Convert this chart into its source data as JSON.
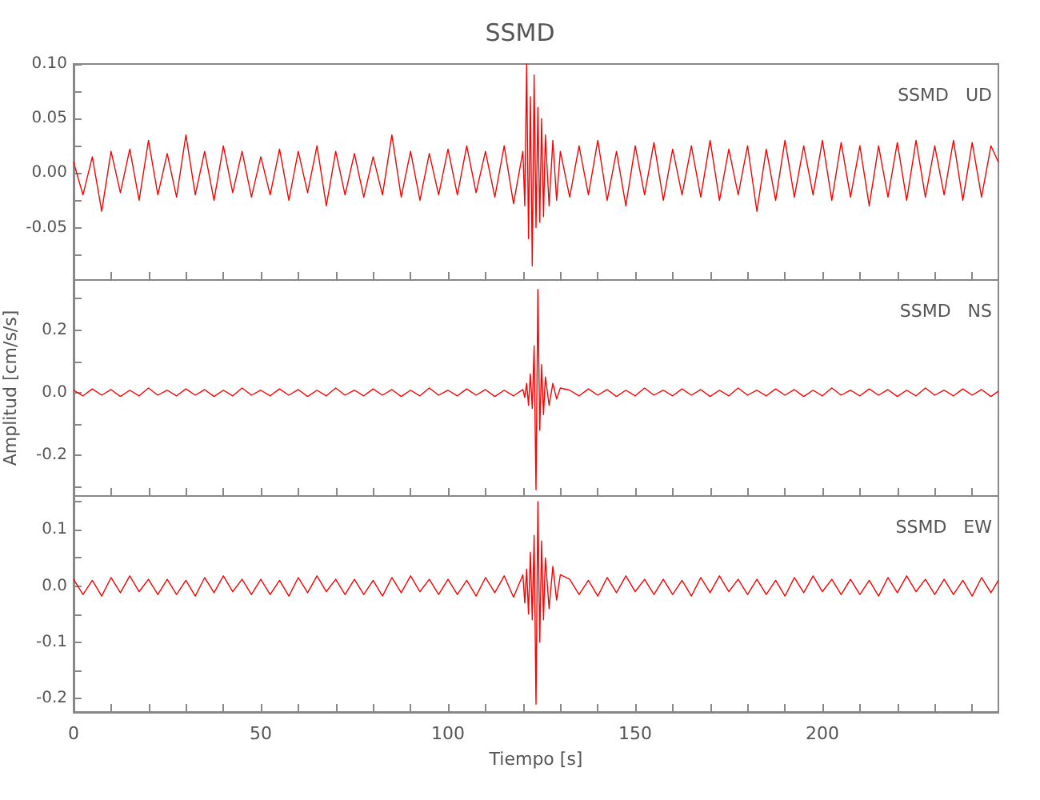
{
  "chart_data": [
    {
      "type": "line",
      "title": "SSMD",
      "annotations": [
        "SSMD   UD"
      ],
      "tick_labels": "y",
      "grid": false,
      "marker": "none",
      "xlim": [
        0,
        247
      ],
      "xticks": [
        0,
        {
          "value": 10,
          "label": null
        },
        {
          "value": 20,
          "label": null
        },
        {
          "value": 30,
          "label": null
        },
        {
          "value": 40,
          "label": null
        },
        50,
        {
          "value": 60,
          "label": null
        },
        {
          "value": 70,
          "label": null
        },
        {
          "value": 80,
          "label": null
        },
        {
          "value": 90,
          "label": null
        },
        100,
        {
          "value": 110,
          "label": null
        },
        {
          "value": 120,
          "label": null
        },
        {
          "value": 130,
          "label": null
        },
        {
          "value": 140,
          "label": null
        },
        150,
        {
          "value": 160,
          "label": null
        },
        {
          "value": 170,
          "label": null
        },
        {
          "value": 180,
          "label": null
        },
        {
          "value": 190,
          "label": null
        },
        200,
        {
          "value": 210,
          "label": null
        },
        {
          "value": 220,
          "label": null
        },
        {
          "value": 230,
          "label": null
        },
        {
          "value": 240,
          "label": null
        }
      ],
      "ylim": [
        -0.098,
        0.1
      ],
      "yticks": [
        {
          "value": -0.075,
          "label": null
        },
        {
          "value": -0.05,
          "label": "-0.05"
        },
        {
          "value": -0.025,
          "label": null
        },
        {
          "value": 0,
          "label": "0.00"
        },
        {
          "value": 0.025,
          "label": null
        },
        {
          "value": 0.05,
          "label": "0.05"
        },
        {
          "value": 0.075,
          "label": null
        },
        {
          "value": 0.1,
          "label": "0.10"
        }
      ],
      "x": [
        0,
        2.5,
        5,
        7.5,
        10,
        12.5,
        15,
        17.5,
        20,
        22.5,
        25,
        27.5,
        30,
        32.5,
        35,
        37.5,
        40,
        42.5,
        45,
        47.5,
        50,
        52.5,
        55,
        57.5,
        60,
        62.5,
        65,
        67.5,
        70,
        72.5,
        75,
        77.5,
        80,
        82.5,
        85,
        87.5,
        90,
        92.5,
        95,
        97.5,
        100,
        102.5,
        105,
        107.5,
        110,
        112.5,
        115,
        117.5,
        120,
        120.5,
        121,
        121.5,
        122,
        122.5,
        123,
        123.5,
        124,
        124.5,
        125,
        125.5,
        126,
        127,
        128,
        129,
        130,
        132.5,
        135,
        137.5,
        140,
        142.5,
        145,
        147.5,
        150,
        152.5,
        155,
        157.5,
        160,
        162.5,
        165,
        167.5,
        170,
        172.5,
        175,
        177.5,
        180,
        182.5,
        185,
        187.5,
        190,
        192.5,
        195,
        197.5,
        200,
        202.5,
        205,
        207.5,
        210,
        212.5,
        215,
        217.5,
        220,
        222.5,
        225,
        227.5,
        230,
        232.5,
        235,
        237.5,
        240,
        242.5,
        245,
        247
      ],
      "series": [
        {
          "color": "#ff0000",
          "values": [
            0.01,
            -0.02,
            0.015,
            -0.035,
            0.02,
            -0.018,
            0.022,
            -0.025,
            0.03,
            -0.02,
            0.018,
            -0.022,
            0.035,
            -0.02,
            0.02,
            -0.025,
            0.025,
            -0.018,
            0.02,
            -0.022,
            0.015,
            -0.02,
            0.022,
            -0.025,
            0.02,
            -0.018,
            0.025,
            -0.03,
            0.02,
            -0.02,
            0.018,
            -0.022,
            0.015,
            -0.02,
            0.035,
            -0.022,
            0.02,
            -0.025,
            0.018,
            -0.02,
            0.022,
            -0.02,
            0.025,
            -0.018,
            0.02,
            -0.022,
            0.025,
            -0.028,
            0.02,
            -0.03,
            0.1,
            -0.06,
            0.07,
            -0.085,
            0.09,
            -0.05,
            0.06,
            -0.045,
            0.05,
            -0.04,
            0.035,
            -0.03,
            0.03,
            -0.025,
            0.02,
            -0.022,
            0.025,
            -0.02,
            0.03,
            -0.025,
            0.02,
            -0.03,
            0.025,
            -0.02,
            0.028,
            -0.025,
            0.022,
            -0.02,
            0.025,
            -0.022,
            0.03,
            -0.025,
            0.022,
            -0.02,
            0.025,
            -0.035,
            0.022,
            -0.025,
            0.03,
            -0.022,
            0.025,
            -0.02,
            0.03,
            -0.025,
            0.028,
            -0.022,
            0.025,
            -0.03,
            0.025,
            -0.022,
            0.028,
            -0.025,
            0.03,
            -0.022,
            0.025,
            -0.02,
            0.03,
            -0.025,
            0.028,
            -0.022,
            0.025,
            0.01
          ]
        }
      ]
    },
    {
      "type": "line",
      "ylabel": "Amplitud [cm/s/s]",
      "annotations": [
        "SSMD   NS"
      ],
      "tick_labels": "y",
      "grid": false,
      "marker": "none",
      "xlim": [
        0,
        247
      ],
      "xticks": [
        0,
        {
          "value": 10,
          "label": null
        },
        {
          "value": 20,
          "label": null
        },
        {
          "value": 30,
          "label": null
        },
        {
          "value": 40,
          "label": null
        },
        50,
        {
          "value": 60,
          "label": null
        },
        {
          "value": 70,
          "label": null
        },
        {
          "value": 80,
          "label": null
        },
        {
          "value": 90,
          "label": null
        },
        100,
        {
          "value": 110,
          "label": null
        },
        {
          "value": 120,
          "label": null
        },
        {
          "value": 130,
          "label": null
        },
        {
          "value": 140,
          "label": null
        },
        150,
        {
          "value": 160,
          "label": null
        },
        {
          "value": 170,
          "label": null
        },
        {
          "value": 180,
          "label": null
        },
        {
          "value": 190,
          "label": null
        },
        200,
        {
          "value": 210,
          "label": null
        },
        {
          "value": 220,
          "label": null
        },
        {
          "value": 230,
          "label": null
        },
        {
          "value": 240,
          "label": null
        }
      ],
      "ylim": [
        -0.33,
        0.36
      ],
      "yticks": [
        {
          "value": -0.3,
          "label": null
        },
        -0.2,
        {
          "value": -0.1,
          "label": null
        },
        {
          "value": 0,
          "label": "0.0"
        },
        {
          "value": 0.1,
          "label": null
        },
        0.2,
        {
          "value": 0.3,
          "label": null
        }
      ],
      "x": [
        0,
        2.5,
        5,
        7.5,
        10,
        12.5,
        15,
        17.5,
        20,
        22.5,
        25,
        27.5,
        30,
        32.5,
        35,
        37.5,
        40,
        42.5,
        45,
        47.5,
        50,
        52.5,
        55,
        57.5,
        60,
        62.5,
        65,
        67.5,
        70,
        72.5,
        75,
        77.5,
        80,
        82.5,
        85,
        87.5,
        90,
        92.5,
        95,
        97.5,
        100,
        102.5,
        105,
        107.5,
        110,
        112.5,
        115,
        117.5,
        120,
        120.5,
        121,
        121.5,
        122,
        122.5,
        123,
        123.5,
        124,
        124.5,
        125,
        125.5,
        126,
        127,
        128,
        129,
        130,
        132.5,
        135,
        137.5,
        140,
        142.5,
        145,
        147.5,
        150,
        152.5,
        155,
        157.5,
        160,
        162.5,
        165,
        167.5,
        170,
        172.5,
        175,
        177.5,
        180,
        182.5,
        185,
        187.5,
        190,
        192.5,
        195,
        197.5,
        200,
        202.5,
        205,
        207.5,
        210,
        212.5,
        215,
        217.5,
        220,
        222.5,
        225,
        227.5,
        230,
        232.5,
        235,
        237.5,
        240,
        242.5,
        245,
        247
      ],
      "series": [
        {
          "color": "#ff0000",
          "values": [
            0.008,
            -0.01,
            0.012,
            -0.008,
            0.01,
            -0.012,
            0.008,
            -0.01,
            0.015,
            -0.008,
            0.008,
            -0.01,
            0.012,
            -0.008,
            0.01,
            -0.012,
            0.008,
            -0.01,
            0.015,
            -0.008,
            0.008,
            -0.01,
            0.012,
            -0.008,
            0.01,
            -0.012,
            0.008,
            -0.01,
            0.015,
            -0.008,
            0.008,
            -0.01,
            0.012,
            -0.008,
            0.01,
            -0.012,
            0.008,
            -0.01,
            0.015,
            -0.008,
            0.008,
            -0.01,
            0.012,
            -0.008,
            0.01,
            -0.012,
            0.008,
            -0.01,
            0.01,
            -0.015,
            0.03,
            -0.04,
            0.06,
            -0.05,
            0.15,
            -0.31,
            0.33,
            -0.12,
            0.09,
            -0.07,
            0.05,
            -0.04,
            0.03,
            -0.02,
            0.015,
            0.008,
            -0.01,
            0.012,
            -0.008,
            0.01,
            -0.012,
            0.008,
            -0.01,
            0.015,
            -0.008,
            0.008,
            -0.01,
            0.012,
            -0.008,
            0.01,
            -0.012,
            0.008,
            -0.01,
            0.015,
            -0.008,
            0.008,
            -0.01,
            0.012,
            -0.008,
            0.01,
            -0.012,
            0.008,
            -0.01,
            0.015,
            -0.008,
            0.008,
            -0.01,
            0.012,
            -0.008,
            0.01,
            -0.012,
            0.008,
            -0.01,
            0.015,
            -0.008,
            0.008,
            -0.01,
            0.012,
            -0.008,
            0.01,
            -0.012,
            0.005
          ]
        }
      ]
    },
    {
      "type": "line",
      "xlabel": "Tiempo [s]",
      "annotations": [
        "SSMD   EW"
      ],
      "grid": false,
      "marker": "none",
      "xlim": [
        0,
        247
      ],
      "xticks": [
        0,
        {
          "value": 10,
          "label": null
        },
        {
          "value": 20,
          "label": null
        },
        {
          "value": 30,
          "label": null
        },
        {
          "value": 40,
          "label": null
        },
        50,
        {
          "value": 60,
          "label": null
        },
        {
          "value": 70,
          "label": null
        },
        {
          "value": 80,
          "label": null
        },
        {
          "value": 90,
          "label": null
        },
        100,
        {
          "value": 110,
          "label": null
        },
        {
          "value": 120,
          "label": null
        },
        {
          "value": 130,
          "label": null
        },
        {
          "value": 140,
          "label": null
        },
        150,
        {
          "value": 160,
          "label": null
        },
        {
          "value": 170,
          "label": null
        },
        {
          "value": 180,
          "label": null
        },
        {
          "value": 190,
          "label": null
        },
        200,
        {
          "value": 210,
          "label": null
        },
        {
          "value": 220,
          "label": null
        },
        {
          "value": 230,
          "label": null
        },
        {
          "value": 240,
          "label": null
        }
      ],
      "ylim": [
        -0.224,
        0.16
      ],
      "yticks": [
        -0.2,
        {
          "value": -0.15,
          "label": null
        },
        -0.1,
        {
          "value": -0.05,
          "label": null
        },
        {
          "value": 0,
          "label": "0.0"
        },
        {
          "value": 0.05,
          "label": null
        },
        0.1,
        {
          "value": 0.15,
          "label": null
        }
      ],
      "x": [
        0,
        2.5,
        5,
        7.5,
        10,
        12.5,
        15,
        17.5,
        20,
        22.5,
        25,
        27.5,
        30,
        32.5,
        35,
        37.5,
        40,
        42.5,
        45,
        47.5,
        50,
        52.5,
        55,
        57.5,
        60,
        62.5,
        65,
        67.5,
        70,
        72.5,
        75,
        77.5,
        80,
        82.5,
        85,
        87.5,
        90,
        92.5,
        95,
        97.5,
        100,
        102.5,
        105,
        107.5,
        110,
        112.5,
        115,
        117.5,
        120,
        120.5,
        121,
        121.5,
        122,
        122.5,
        123,
        123.5,
        124,
        124.5,
        125,
        125.5,
        126,
        127,
        128,
        129,
        130,
        132.5,
        135,
        137.5,
        140,
        142.5,
        145,
        147.5,
        150,
        152.5,
        155,
        157.5,
        160,
        162.5,
        165,
        167.5,
        170,
        172.5,
        175,
        177.5,
        180,
        182.5,
        185,
        187.5,
        190,
        192.5,
        195,
        197.5,
        200,
        202.5,
        205,
        207.5,
        210,
        212.5,
        215,
        217.5,
        220,
        222.5,
        225,
        227.5,
        230,
        232.5,
        235,
        237.5,
        240,
        242.5,
        245,
        247
      ],
      "series": [
        {
          "color": "#ff0000",
          "values": [
            0.012,
            -0.015,
            0.01,
            -0.018,
            0.015,
            -0.012,
            0.018,
            -0.01,
            0.012,
            -0.015,
            0.012,
            -0.015,
            0.01,
            -0.018,
            0.015,
            -0.012,
            0.018,
            -0.01,
            0.012,
            -0.015,
            0.012,
            -0.015,
            0.01,
            -0.018,
            0.015,
            -0.012,
            0.018,
            -0.01,
            0.012,
            -0.015,
            0.012,
            -0.015,
            0.01,
            -0.018,
            0.015,
            -0.012,
            0.018,
            -0.01,
            0.012,
            -0.015,
            0.012,
            -0.015,
            0.01,
            -0.018,
            0.015,
            -0.012,
            0.018,
            -0.02,
            0.02,
            -0.03,
            0.03,
            -0.05,
            0.06,
            -0.06,
            0.09,
            -0.21,
            0.15,
            -0.1,
            0.08,
            -0.06,
            0.05,
            -0.04,
            0.035,
            -0.025,
            0.02,
            0.012,
            -0.015,
            0.01,
            -0.018,
            0.015,
            -0.012,
            0.018,
            -0.01,
            0.012,
            -0.015,
            0.012,
            -0.015,
            0.01,
            -0.018,
            0.015,
            -0.012,
            0.018,
            -0.01,
            0.012,
            -0.015,
            0.012,
            -0.015,
            0.01,
            -0.018,
            0.015,
            -0.012,
            0.018,
            -0.01,
            0.012,
            -0.015,
            0.012,
            -0.015,
            0.01,
            -0.018,
            0.015,
            -0.012,
            0.018,
            -0.01,
            0.012,
            -0.015,
            0.012,
            -0.015,
            0.01,
            -0.018,
            0.015,
            -0.012,
            0.01
          ]
        }
      ]
    }
  ]
}
